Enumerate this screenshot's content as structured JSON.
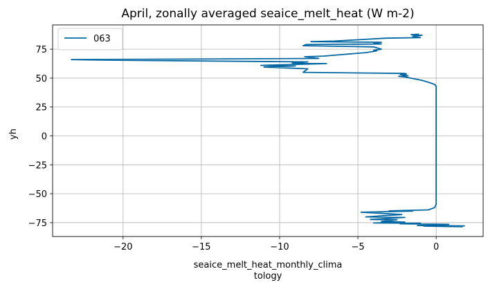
{
  "chart_data": {
    "type": "line",
    "title": "April, zonally averaged seaice_melt_heat (W m-2)",
    "xlabel_lines": [
      "seaice_melt_heat_monthly_clima",
      "tology"
    ],
    "ylabel": "yh",
    "xlim": [
      -24.5,
      3.0
    ],
    "ylim": [
      -87,
      96
    ],
    "x_ticks": [
      -20,
      -15,
      -10,
      -5,
      0
    ],
    "x_tick_labels": [
      "−20",
      "−15",
      "−10",
      "−5",
      "0"
    ],
    "y_ticks": [
      -75,
      -50,
      -25,
      0,
      25,
      50,
      75
    ],
    "y_tick_labels": [
      "−75",
      "−50",
      "−25",
      "0",
      "25",
      "50",
      "75"
    ],
    "grid": true,
    "legend_position": "top-left",
    "series": [
      {
        "name": "063",
        "color": "#0066a1",
        "x": [
          1.7,
          -0.8,
          1.8,
          -1.2,
          0.8,
          -2.3,
          -1.0,
          -4.0,
          -2.0,
          -3.5,
          -2.5,
          -4.2,
          -2.0,
          -4.5,
          -2.2,
          -4.8,
          -1.5,
          -3.0,
          -0.5,
          -0.1,
          0.0,
          0.0,
          0.0,
          0.0,
          0.0,
          -0.1,
          -0.4,
          -0.9,
          -2.0,
          -2.4,
          -1.8,
          -2.3,
          -1.9,
          -2.0,
          -8.5,
          -8.2,
          -11.0,
          -9.0,
          -11.2,
          -7.0,
          -9.2,
          -8.2,
          -21.0,
          -23.3,
          -7.5,
          -8.4,
          -7.2,
          -4.5,
          -3.8,
          -4.0,
          -3.5,
          -4.0,
          -8.5,
          -8.3,
          -3.5,
          -4.0,
          -3.5,
          -8.0,
          -6.5,
          -3.2,
          -1.0,
          -1.5,
          -0.9,
          -1.6,
          -1.1
        ],
        "y": [
          -78.5,
          -78.0,
          -77.8,
          -77.5,
          -76.5,
          -76.0,
          -75.5,
          -75.3,
          -74.5,
          -74.0,
          -72.5,
          -72.2,
          -70.5,
          -70.0,
          -68.0,
          -66.0,
          -65.0,
          -64.8,
          -64.0,
          -62.0,
          -59.0,
          0.0,
          25.0,
          40.0,
          43.0,
          44.5,
          46.0,
          48.0,
          51.0,
          51.5,
          52.0,
          53.0,
          53.5,
          54.0,
          55.0,
          58.0,
          59.5,
          60.5,
          61.0,
          62.5,
          63.0,
          64.0,
          65.5,
          66.0,
          67.0,
          68.5,
          69.0,
          72.0,
          73.5,
          74.0,
          75.0,
          77.0,
          78.0,
          79.0,
          79.5,
          80.5,
          81.0,
          81.5,
          82.0,
          84.5,
          85.0,
          86.0,
          87.0,
          87.5,
          88.0
        ]
      }
    ]
  }
}
